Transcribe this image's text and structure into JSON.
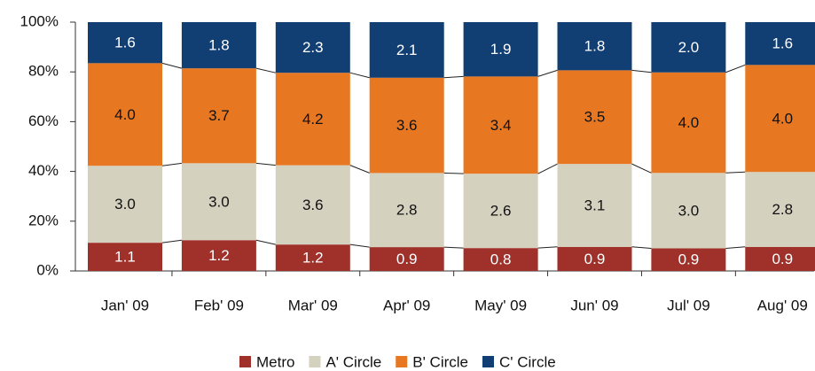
{
  "chart_data": {
    "type": "bar",
    "stacking": "percent",
    "categories": [
      "Jan' 09",
      "Feb' 09",
      "Mar' 09",
      "Apr' 09",
      "May' 09",
      "Jun' 09",
      "Jul' 09",
      "Aug' 09"
    ],
    "series": [
      {
        "name": "Metro",
        "color": "#a0302a",
        "label_color": "#ffffff",
        "values": [
          1.1,
          1.2,
          1.2,
          0.9,
          0.8,
          0.9,
          0.9,
          0.9
        ]
      },
      {
        "name": "A' Circle",
        "color": "#d5d1bf",
        "label_color": "#111111",
        "values": [
          3.0,
          3.0,
          3.6,
          2.8,
          2.6,
          3.1,
          3.0,
          2.8
        ]
      },
      {
        "name": "B' Circle",
        "color": "#e87722",
        "label_color": "#111111",
        "values": [
          4.0,
          3.7,
          4.2,
          3.6,
          3.4,
          3.5,
          4.0,
          4.0
        ]
      },
      {
        "name": "C' Circle",
        "color": "#123f73",
        "label_color": "#ffffff",
        "values": [
          1.6,
          1.8,
          2.3,
          2.1,
          1.9,
          1.8,
          2.0,
          1.6
        ]
      }
    ],
    "value_labels": [
      [
        "1.1",
        "1.2",
        "1.2",
        "0.9",
        "0.8",
        "0.9",
        "0.9",
        "0.9"
      ],
      [
        "3.0",
        "3.0",
        "3.6",
        "2.8",
        "2.6",
        "3.1",
        "3.0",
        "2.8"
      ],
      [
        "4.0",
        "3.7",
        "4.2",
        "3.6",
        "3.4",
        "3.5",
        "4.0",
        "4.0"
      ],
      [
        "1.6",
        "1.8",
        "2.3",
        "2.1",
        "1.9",
        "1.8",
        "2.0",
        "1.6"
      ]
    ],
    "ylim": [
      0,
      100
    ],
    "yticks": [
      {
        "value": 0,
        "label": "0%"
      },
      {
        "value": 20,
        "label": "20%"
      },
      {
        "value": 40,
        "label": "40%"
      },
      {
        "value": 60,
        "label": "60%"
      },
      {
        "value": 80,
        "label": "80%"
      },
      {
        "value": 100,
        "label": "100%"
      }
    ],
    "series_lines": true,
    "legend": "bottom"
  }
}
